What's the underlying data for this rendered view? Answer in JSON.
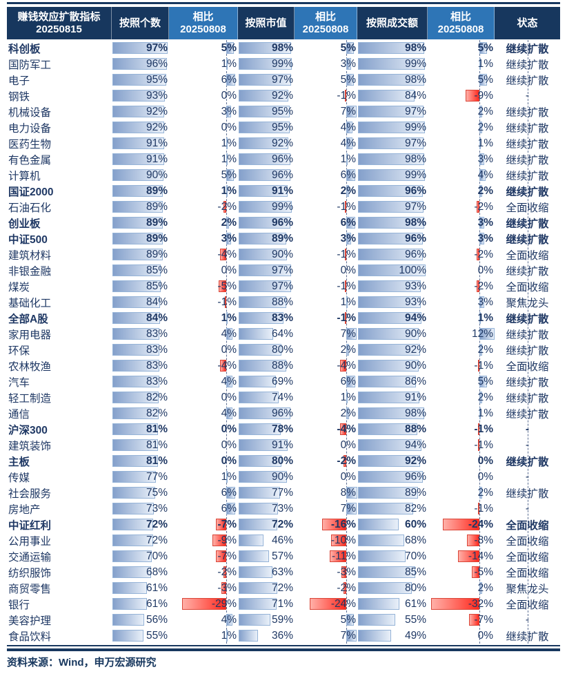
{
  "header": {
    "cells": [
      {
        "line1": "赚钱效应扩散指标",
        "line2": "20250815",
        "style": "dark"
      },
      {
        "line1": "按照个数",
        "line2": "",
        "style": "dark"
      },
      {
        "line1": "相比",
        "line2": "20250808",
        "style": "light"
      },
      {
        "line1": "按照市值",
        "line2": "",
        "style": "dark"
      },
      {
        "line1": "相比",
        "line2": "20250808",
        "style": "light"
      },
      {
        "line1": "按照成交额",
        "line2": "",
        "style": "dark"
      },
      {
        "line1": "相比",
        "line2": "20250808",
        "style": "light"
      },
      {
        "line1": "状态",
        "line2": "",
        "style": "dark"
      }
    ]
  },
  "footer": {
    "source": "资料来源：Wind，申万宏源研究"
  },
  "colors": {
    "header_dark": "#17375E",
    "header_light": "#2E75B6",
    "text_navy": "#1F3864",
    "bar_blue_start": "#84A0CB",
    "bar_blue_end": "#E9F0F9",
    "bar_blue_border": "#95B3D7",
    "bar_red_start": "#FFB0A8",
    "bar_red_end": "#FF2A1F",
    "bar_red_border": "#D94436"
  },
  "chart_data": {
    "type": "table",
    "title": "赚钱效应扩散指标 20250815",
    "columns": [
      "赚钱效应扩散指标 20250815",
      "按照个数",
      "相比20250808",
      "按照市值",
      "相比20250808",
      "按照成交额",
      "相比20250808",
      "状态"
    ],
    "unit": "percent",
    "rows": [
      {
        "name": "科创板",
        "bold": true,
        "by_count": 97,
        "chg_count": 5,
        "by_mcap": 98,
        "chg_mcap": 5,
        "by_turnover": 98,
        "chg_turnover": 5,
        "status": "继续扩散"
      },
      {
        "name": "国防军工",
        "bold": false,
        "by_count": 96,
        "chg_count": 1,
        "by_mcap": 99,
        "chg_mcap": 3,
        "by_turnover": 99,
        "chg_turnover": 1,
        "status": "继续扩散"
      },
      {
        "name": "电子",
        "bold": false,
        "by_count": 95,
        "chg_count": 6,
        "by_mcap": 97,
        "chg_mcap": 5,
        "by_turnover": 98,
        "chg_turnover": 5,
        "status": "继续扩散"
      },
      {
        "name": "钢铁",
        "bold": false,
        "by_count": 93,
        "chg_count": 0,
        "by_mcap": 92,
        "chg_mcap": -1,
        "by_turnover": 84,
        "chg_turnover": -9,
        "status": "-"
      },
      {
        "name": "机械设备",
        "bold": false,
        "by_count": 92,
        "chg_count": 3,
        "by_mcap": 95,
        "chg_mcap": 7,
        "by_turnover": 97,
        "chg_turnover": 2,
        "status": "继续扩散"
      },
      {
        "name": "电力设备",
        "bold": false,
        "by_count": 92,
        "chg_count": 0,
        "by_mcap": 95,
        "chg_mcap": 4,
        "by_turnover": 99,
        "chg_turnover": 2,
        "status": "继续扩散"
      },
      {
        "name": "医药生物",
        "bold": false,
        "by_count": 91,
        "chg_count": 1,
        "by_mcap": 92,
        "chg_mcap": 4,
        "by_turnover": 97,
        "chg_turnover": 1,
        "status": "继续扩散"
      },
      {
        "name": "有色金属",
        "bold": false,
        "by_count": 91,
        "chg_count": 1,
        "by_mcap": 96,
        "chg_mcap": 1,
        "by_turnover": 98,
        "chg_turnover": 3,
        "status": "继续扩散"
      },
      {
        "name": "计算机",
        "bold": false,
        "by_count": 90,
        "chg_count": 5,
        "by_mcap": 96,
        "chg_mcap": 6,
        "by_turnover": 99,
        "chg_turnover": 4,
        "status": "继续扩散"
      },
      {
        "name": "国证2000",
        "bold": true,
        "by_count": 89,
        "chg_count": 1,
        "by_mcap": 91,
        "chg_mcap": 2,
        "by_turnover": 96,
        "chg_turnover": 2,
        "status": "继续扩散"
      },
      {
        "name": "石油石化",
        "bold": false,
        "by_count": 89,
        "chg_count": -2,
        "by_mcap": 99,
        "chg_mcap": -1,
        "by_turnover": 97,
        "chg_turnover": -2,
        "status": "全面收缩"
      },
      {
        "name": "创业板",
        "bold": true,
        "by_count": 89,
        "chg_count": 2,
        "by_mcap": 96,
        "chg_mcap": 6,
        "by_turnover": 98,
        "chg_turnover": 3,
        "status": "继续扩散"
      },
      {
        "name": "中证500",
        "bold": true,
        "by_count": 89,
        "chg_count": 3,
        "by_mcap": 89,
        "chg_mcap": 3,
        "by_turnover": 96,
        "chg_turnover": 3,
        "status": "继续扩散"
      },
      {
        "name": "建筑材料",
        "bold": false,
        "by_count": 89,
        "chg_count": -4,
        "by_mcap": 90,
        "chg_mcap": -1,
        "by_turnover": 96,
        "chg_turnover": -2,
        "status": "全面收缩"
      },
      {
        "name": "非银金融",
        "bold": false,
        "by_count": 85,
        "chg_count": 0,
        "by_mcap": 97,
        "chg_mcap": 0,
        "by_turnover": 100,
        "chg_turnover": 0,
        "status": "继续扩散"
      },
      {
        "name": "煤炭",
        "bold": false,
        "by_count": 85,
        "chg_count": -5,
        "by_mcap": 97,
        "chg_mcap": -1,
        "by_turnover": 93,
        "chg_turnover": -2,
        "status": "全面收缩"
      },
      {
        "name": "基础化工",
        "bold": false,
        "by_count": 84,
        "chg_count": -1,
        "by_mcap": 88,
        "chg_mcap": 1,
        "by_turnover": 93,
        "chg_turnover": 3,
        "status": "聚焦龙头"
      },
      {
        "name": "全部A股",
        "bold": true,
        "by_count": 84,
        "chg_count": 1,
        "by_mcap": 83,
        "chg_mcap": -1,
        "by_turnover": 94,
        "chg_turnover": 1,
        "status": "继续扩散"
      },
      {
        "name": "家用电器",
        "bold": false,
        "by_count": 83,
        "chg_count": 4,
        "by_mcap": 64,
        "chg_mcap": 7,
        "by_turnover": 90,
        "chg_turnover": 12,
        "status": "继续扩散"
      },
      {
        "name": "环保",
        "bold": false,
        "by_count": 83,
        "chg_count": 0,
        "by_mcap": 80,
        "chg_mcap": 2,
        "by_turnover": 92,
        "chg_turnover": 2,
        "status": "继续扩散"
      },
      {
        "name": "农林牧渔",
        "bold": false,
        "by_count": 83,
        "chg_count": -4,
        "by_mcap": 88,
        "chg_mcap": -4,
        "by_turnover": 90,
        "chg_turnover": -1,
        "status": "全面收缩"
      },
      {
        "name": "汽车",
        "bold": false,
        "by_count": 83,
        "chg_count": 4,
        "by_mcap": 69,
        "chg_mcap": 6,
        "by_turnover": 86,
        "chg_turnover": 5,
        "status": "继续扩散"
      },
      {
        "name": "轻工制造",
        "bold": false,
        "by_count": 82,
        "chg_count": 0,
        "by_mcap": 74,
        "chg_mcap": 1,
        "by_turnover": 91,
        "chg_turnover": 2,
        "status": "继续扩散"
      },
      {
        "name": "通信",
        "bold": false,
        "by_count": 82,
        "chg_count": 4,
        "by_mcap": 96,
        "chg_mcap": 2,
        "by_turnover": 98,
        "chg_turnover": 1,
        "status": "继续扩散"
      },
      {
        "name": "沪深300",
        "bold": true,
        "by_count": 81,
        "chg_count": 0,
        "by_mcap": 78,
        "chg_mcap": -4,
        "by_turnover": 88,
        "chg_turnover": -1,
        "status": "-"
      },
      {
        "name": "建筑装饰",
        "bold": false,
        "by_count": 81,
        "chg_count": 0,
        "by_mcap": 91,
        "chg_mcap": 0,
        "by_turnover": 94,
        "chg_turnover": -1,
        "status": "-"
      },
      {
        "name": "主板",
        "bold": true,
        "by_count": 81,
        "chg_count": 0,
        "by_mcap": 80,
        "chg_mcap": -2,
        "by_turnover": 92,
        "chg_turnover": 0,
        "status": "继续扩散"
      },
      {
        "name": "传媒",
        "bold": false,
        "by_count": 77,
        "chg_count": 1,
        "by_mcap": 90,
        "chg_mcap": 0,
        "by_turnover": 96,
        "chg_turnover": 0,
        "status": "-"
      },
      {
        "name": "社会服务",
        "bold": false,
        "by_count": 75,
        "chg_count": 6,
        "by_mcap": 77,
        "chg_mcap": 8,
        "by_turnover": 89,
        "chg_turnover": 2,
        "status": "继续扩散"
      },
      {
        "name": "房地产",
        "bold": false,
        "by_count": 73,
        "chg_count": 6,
        "by_mcap": 73,
        "chg_mcap": 7,
        "by_turnover": 82,
        "chg_turnover": -1,
        "status": "-"
      },
      {
        "name": "中证红利",
        "bold": true,
        "by_count": 72,
        "chg_count": -7,
        "by_mcap": 72,
        "chg_mcap": -16,
        "by_turnover": 60,
        "chg_turnover": -24,
        "status": "全面收缩"
      },
      {
        "name": "公用事业",
        "bold": false,
        "by_count": 72,
        "chg_count": -9,
        "by_mcap": 46,
        "chg_mcap": -10,
        "by_turnover": 68,
        "chg_turnover": -8,
        "status": "全面收缩"
      },
      {
        "name": "交通运输",
        "bold": false,
        "by_count": 70,
        "chg_count": -7,
        "by_mcap": 57,
        "chg_mcap": -11,
        "by_turnover": 70,
        "chg_turnover": -14,
        "status": "全面收缩"
      },
      {
        "name": "纺织服饰",
        "bold": false,
        "by_count": 68,
        "chg_count": -2,
        "by_mcap": 63,
        "chg_mcap": -3,
        "by_turnover": 85,
        "chg_turnover": -5,
        "status": "全面收缩"
      },
      {
        "name": "商贸零售",
        "bold": false,
        "by_count": 61,
        "chg_count": -3,
        "by_mcap": 72,
        "chg_mcap": -2,
        "by_turnover": 80,
        "chg_turnover": 2,
        "status": "聚焦龙头"
      },
      {
        "name": "银行",
        "bold": false,
        "by_count": 61,
        "chg_count": -29,
        "by_mcap": 71,
        "chg_mcap": -24,
        "by_turnover": 61,
        "chg_turnover": -32,
        "status": "全面收缩"
      },
      {
        "name": "美容护理",
        "bold": false,
        "by_count": 56,
        "chg_count": 4,
        "by_mcap": 59,
        "chg_mcap": 5,
        "by_turnover": 55,
        "chg_turnover": -7,
        "status": "-"
      },
      {
        "name": "食品饮料",
        "bold": false,
        "by_count": 55,
        "chg_count": 1,
        "by_mcap": 36,
        "chg_mcap": 7,
        "by_turnover": 49,
        "chg_turnover": 0,
        "status": "继续扩散"
      }
    ]
  }
}
